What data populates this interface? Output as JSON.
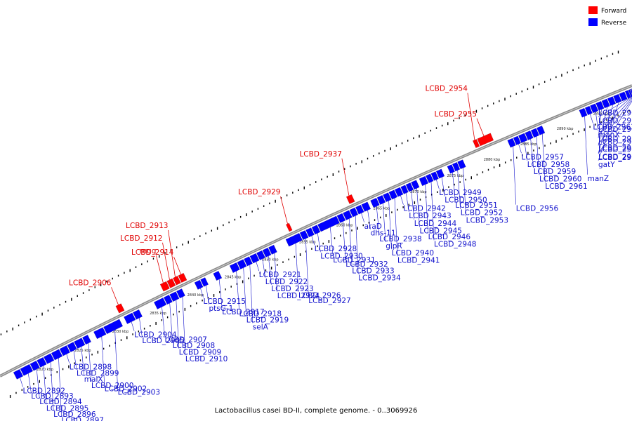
{
  "caption": "Lactobacillus casei BD-II, complete genome. - 0..3069926",
  "legend": {
    "forward_label": "Forward",
    "reverse_label": "Reverse",
    "forward_color": "#ff0000",
    "reverse_color": "#0000ff"
  },
  "scale": {
    "start_kbp": 2815,
    "end_kbp": 2900,
    "tick_labels": [
      "2820 kbp",
      "2825 kbp",
      "2830 kbp",
      "2835 kbp",
      "2840 kbp",
      "2845 kbp",
      "2850 kbp",
      "2855 kbp",
      "2860 kbp",
      "2865 kbp",
      "2870 kbp",
      "2875 kbp",
      "2880 kbp",
      "2885 kbp",
      "2890 kbp",
      "2895 kbp"
    ]
  },
  "genes": [
    {
      "name": "LCBD_2892",
      "strand": "reverse",
      "start": 2816.6,
      "end": 2817.4
    },
    {
      "name": "LCBD_2893",
      "strand": "reverse",
      "start": 2817.5,
      "end": 2818.7
    },
    {
      "name": "LCBD_2894",
      "strand": "reverse",
      "start": 2818.8,
      "end": 2819.6
    },
    {
      "name": "LCBD_2895",
      "strand": "reverse",
      "start": 2819.7,
      "end": 2820.5
    },
    {
      "name": "LCBD_2896",
      "strand": "reverse",
      "start": 2820.6,
      "end": 2821.5
    },
    {
      "name": "LCBD_2897",
      "strand": "reverse",
      "start": 2821.6,
      "end": 2822.6
    },
    {
      "name": "LCBD_2898",
      "strand": "reverse",
      "start": 2822.7,
      "end": 2823.6
    },
    {
      "name": "LCBD_2899",
      "strand": "reverse",
      "start": 2823.7,
      "end": 2824.5
    },
    {
      "name": "malX",
      "strand": "reverse",
      "start": 2824.6,
      "end": 2825.6
    },
    {
      "name": "LCBD_2900",
      "strand": "reverse",
      "start": 2825.7,
      "end": 2826.4
    },
    {
      "name": "LCBD_2902",
      "strand": "reverse",
      "start": 2827.2,
      "end": 2828.4
    },
    {
      "name": "LCBD_2903",
      "strand": "reverse",
      "start": 2828.5,
      "end": 2830.6
    },
    {
      "name": "LCBD_2904",
      "strand": "reverse",
      "start": 2831.2,
      "end": 2832.3
    },
    {
      "name": "LCBD_2905",
      "strand": "reverse",
      "start": 2832.4,
      "end": 2833.2
    },
    {
      "name": "LCBD_2906",
      "strand": "forward",
      "start": 2830.9,
      "end": 2831.6
    },
    {
      "name": "LCBD_2907",
      "strand": "reverse",
      "start": 2835.2,
      "end": 2836.4
    },
    {
      "name": "LCBD_2908",
      "strand": "reverse",
      "start": 2836.5,
      "end": 2837.2
    },
    {
      "name": "LCBD_2909",
      "strand": "reverse",
      "start": 2837.3,
      "end": 2838.1
    },
    {
      "name": "LCBD_2910",
      "strand": "reverse",
      "start": 2838.2,
      "end": 2838.9
    },
    {
      "name": "mgg",
      "strand": "forward",
      "start": 2836.8,
      "end": 2837.6
    },
    {
      "name": "LCBD_2912",
      "strand": "forward",
      "start": 2837.7,
      "end": 2838.4
    },
    {
      "name": "LCBD_2913",
      "strand": "forward",
      "start": 2838.5,
      "end": 2839.1
    },
    {
      "name": "LCBD_2914",
      "strand": "forward",
      "start": 2839.2,
      "end": 2839.9
    },
    {
      "name": "LCBD_2915",
      "strand": "reverse",
      "start": 2840.6,
      "end": 2841.3
    },
    {
      "name": "ptsG-1",
      "strand": "reverse",
      "start": 2841.4,
      "end": 2842.0
    },
    {
      "name": "LCBD_2917",
      "strand": "reverse",
      "start": 2843.1,
      "end": 2843.8
    },
    {
      "name": "LCBD_2918",
      "strand": "reverse",
      "start": 2845.3,
      "end": 2846.2
    },
    {
      "name": "LCBD_2919",
      "strand": "reverse",
      "start": 2846.3,
      "end": 2847.1
    },
    {
      "name": "selA",
      "strand": "reverse",
      "start": 2847.2,
      "end": 2847.9
    },
    {
      "name": "LCBD_2921",
      "strand": "reverse",
      "start": 2848.0,
      "end": 2848.8
    },
    {
      "name": "LCBD_2922",
      "strand": "reverse",
      "start": 2848.9,
      "end": 2849.6
    },
    {
      "name": "LCBD_2923",
      "strand": "reverse",
      "start": 2849.7,
      "end": 2850.4
    },
    {
      "name": "LCBD_2924",
      "strand": "reverse",
      "start": 2850.5,
      "end": 2851.2
    },
    {
      "name": "LCBD_2926",
      "strand": "reverse",
      "start": 2852.8,
      "end": 2854.6
    },
    {
      "name": "LCBD_2927",
      "strand": "reverse",
      "start": 2854.7,
      "end": 2855.4
    },
    {
      "name": "LCBD_2928",
      "strand": "reverse",
      "start": 2855.5,
      "end": 2856.2
    },
    {
      "name": "LCBD_2929",
      "strand": "forward",
      "start": 2853.6,
      "end": 2854.0
    },
    {
      "name": "LCBD_2930",
      "strand": "reverse",
      "start": 2856.3,
      "end": 2857.0
    },
    {
      "name": "LCBD_2931",
      "strand": "reverse",
      "start": 2857.1,
      "end": 2859.6
    },
    {
      "name": "LCBD_2932",
      "strand": "reverse",
      "start": 2859.7,
      "end": 2860.4
    },
    {
      "name": "LCBD_2933",
      "strand": "reverse",
      "start": 2860.5,
      "end": 2861.3
    },
    {
      "name": "LCBD_2934",
      "strand": "reverse",
      "start": 2861.4,
      "end": 2862.1
    },
    {
      "name": "araD",
      "strand": "reverse",
      "start": 2862.2,
      "end": 2862.9
    },
    {
      "name": "dhs-11",
      "strand": "reverse",
      "start": 2863.0,
      "end": 2863.8
    },
    {
      "name": "LCBD_2937",
      "strand": "forward",
      "start": 2861.7,
      "end": 2862.4
    },
    {
      "name": "LCBD_2938",
      "strand": "reverse",
      "start": 2864.2,
      "end": 2865.0
    },
    {
      "name": "glpR",
      "strand": "reverse",
      "start": 2865.1,
      "end": 2865.8
    },
    {
      "name": "LCBD_2940",
      "strand": "reverse",
      "start": 2865.9,
      "end": 2866.6
    },
    {
      "name": "LCBD_2941",
      "strand": "reverse",
      "start": 2866.7,
      "end": 2867.4
    },
    {
      "name": "LCBD_2942",
      "strand": "reverse",
      "start": 2867.5,
      "end": 2868.2
    },
    {
      "name": "LCBD_2943",
      "strand": "reverse",
      "start": 2868.3,
      "end": 2868.9
    },
    {
      "name": "LCBD_2944",
      "strand": "reverse",
      "start": 2869.0,
      "end": 2869.6
    },
    {
      "name": "LCBD_2945",
      "strand": "reverse",
      "start": 2869.7,
      "end": 2870.4
    },
    {
      "name": "LCBD_2946",
      "strand": "reverse",
      "start": 2870.8,
      "end": 2871.6
    },
    {
      "name": "LCBD_2948",
      "strand": "reverse",
      "start": 2871.7,
      "end": 2872.3
    },
    {
      "name": "LCBD_2949",
      "strand": "reverse",
      "start": 2872.4,
      "end": 2873.0
    },
    {
      "name": "LCBD_2950",
      "strand": "reverse",
      "start": 2873.1,
      "end": 2873.8
    },
    {
      "name": "LCBD_2951",
      "strand": "reverse",
      "start": 2874.6,
      "end": 2875.2
    },
    {
      "name": "LCBD_2952",
      "strand": "reverse",
      "start": 2875.3,
      "end": 2875.9
    },
    {
      "name": "LCBD_2953",
      "strand": "reverse",
      "start": 2876.0,
      "end": 2876.7
    },
    {
      "name": "LCBD_2954",
      "strand": "forward",
      "start": 2878.8,
      "end": 2879.3
    },
    {
      "name": "LCBD_2955",
      "strand": "forward",
      "start": 2879.4,
      "end": 2881.2
    },
    {
      "name": "LCBD_2956",
      "strand": "reverse",
      "start": 2882.8,
      "end": 2883.5
    },
    {
      "name": "LCBD_2957",
      "strand": "reverse",
      "start": 2883.6,
      "end": 2884.2
    },
    {
      "name": "LCBD_2958",
      "strand": "reverse",
      "start": 2884.3,
      "end": 2885.1
    },
    {
      "name": "LCBD_2959",
      "strand": "reverse",
      "start": 2885.2,
      "end": 2885.9
    },
    {
      "name": "LCBD_2960",
      "strand": "reverse",
      "start": 2886.0,
      "end": 2886.7
    },
    {
      "name": "LCBD_2961",
      "strand": "reverse",
      "start": 2886.8,
      "end": 2887.5
    },
    {
      "name": "manZ",
      "strand": "reverse",
      "start": 2892.6,
      "end": 2893.3
    },
    {
      "name": "LCBD_2963",
      "strand": "reverse",
      "start": 2893.4,
      "end": 2894.0
    },
    {
      "name": "manX",
      "strand": "reverse",
      "start": 2894.1,
      "end": 2894.8
    },
    {
      "name": "LCBD_2965",
      "strand": "reverse",
      "start": 2894.9,
      "end": 2895.6
    },
    {
      "name": "LCBD_2966",
      "strand": "reverse",
      "start": 2895.7,
      "end": 2896.4
    },
    {
      "name": "LCBD_2967",
      "strand": "reverse",
      "start": 2896.5,
      "end": 2897.2
    },
    {
      "name": "gatY",
      "strand": "reverse",
      "start": 2897.3,
      "end": 2898.0
    },
    {
      "name": "LCBD_2968",
      "strand": "reverse",
      "start": 2898.1,
      "end": 2898.8
    },
    {
      "name": "LCBD_2970",
      "strand": "reverse",
      "start": 2898.9,
      "end": 2899.3
    },
    {
      "name": "LCBD_2971",
      "strand": "reverse",
      "start": 2899.35,
      "end": 2899.55
    },
    {
      "name": "LCBD_2972",
      "strand": "reverse",
      "start": 2899.6,
      "end": 2899.75
    },
    {
      "name": "LCBD_2973",
      "strand": "reverse",
      "start": 2899.8,
      "end": 2899.9
    },
    {
      "name": "LCBD_2974",
      "strand": "reverse",
      "start": 2899.92,
      "end": 2900.0
    }
  ]
}
